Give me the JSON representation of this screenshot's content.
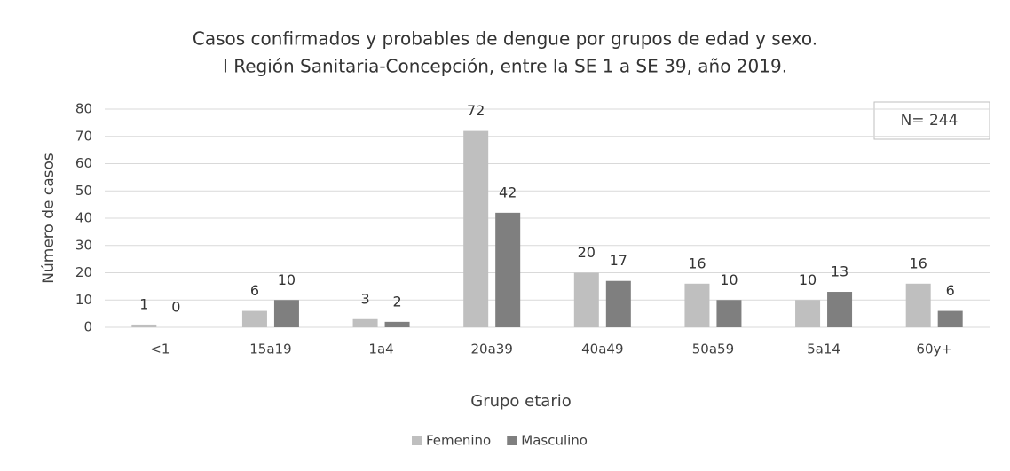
{
  "chart_data": {
    "type": "bar",
    "title": "Casos confirmados y probables de dengue por grupos de edad y sexo.",
    "subtitle": "I Región Sanitaria-Concepción, entre la SE 1 a SE 39, año 2019.",
    "annotation": "N= 244",
    "x_label": "Grupo etario",
    "y_label": "Número de casos",
    "categories": [
      "<1",
      "15a19",
      "1a4",
      "20a39",
      "40a49",
      "50a59",
      "5a14",
      "60y+"
    ],
    "series": [
      {
        "name": "Femenino",
        "color": "#bfbfbf",
        "values": [
          1,
          6,
          3,
          72,
          20,
          16,
          10,
          16
        ]
      },
      {
        "name": "Masculino",
        "color": "#7f7f7f",
        "values": [
          0,
          10,
          2,
          42,
          17,
          10,
          13,
          6
        ]
      }
    ],
    "ylim": [
      0,
      80
    ],
    "yticks": [
      0,
      10,
      20,
      30,
      40,
      50,
      60,
      70,
      80
    ],
    "grid": true,
    "legend": "bottom"
  }
}
